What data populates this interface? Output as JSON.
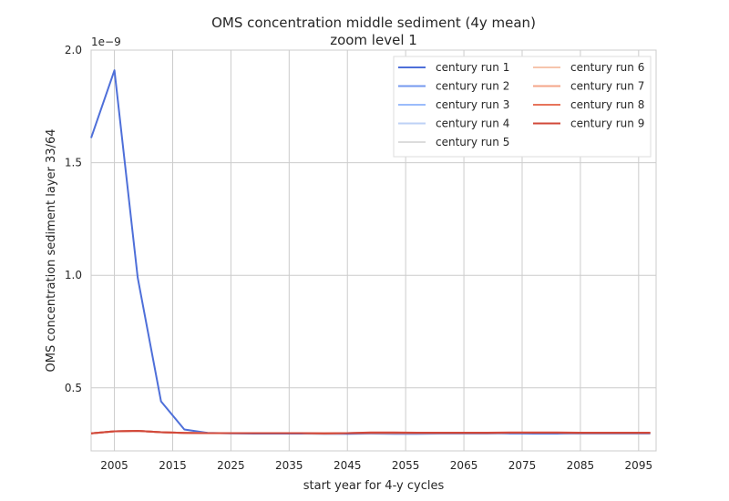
{
  "chart_data": {
    "type": "line",
    "title": "OMS concentration middle sediment (4y mean)",
    "subtitle": "zoom level 1",
    "xlabel": "start year for 4-y cycles",
    "ylabel": "OMS concentration sediment layer 33/64",
    "y_offset_label": "1e−9",
    "xlim": [
      2001,
      2098
    ],
    "ylim": [
      2.2e-10,
      2e-09
    ],
    "x_ticks": [
      2005,
      2015,
      2025,
      2035,
      2045,
      2055,
      2065,
      2075,
      2085,
      2095
    ],
    "x_tick_labels": [
      "2005",
      "2015",
      "2025",
      "2035",
      "2045",
      "2055",
      "2065",
      "2075",
      "2085",
      "2095"
    ],
    "y_ticks": [
      5e-10,
      1e-09,
      1.5e-09,
      2e-09
    ],
    "y_tick_labels": [
      "0.5",
      "1.0",
      "1.5",
      "2.0"
    ],
    "grid": true,
    "legend_position": "top-right",
    "x": [
      2001,
      2005,
      2009,
      2013,
      2017,
      2021,
      2025,
      2029,
      2033,
      2037,
      2041,
      2045,
      2049,
      2053,
      2057,
      2061,
      2065,
      2069,
      2073,
      2077,
      2081,
      2085,
      2089,
      2093,
      2097
    ],
    "series": [
      {
        "name": "century run 1",
        "color": "#4e6fd9",
        "values": [
          1.61e-09,
          1.91e-09,
          9.9e-10,
          4.4e-10,
          3.15e-10,
          3e-10,
          2.98e-10,
          2.97e-10,
          2.97e-10,
          2.97e-10,
          2.96e-10,
          2.96e-10,
          2.97e-10,
          2.96e-10,
          2.96e-10,
          2.97e-10,
          2.97e-10,
          2.97e-10,
          2.98e-10,
          2.97e-10,
          2.97e-10,
          2.97e-10,
          2.97e-10,
          2.97e-10,
          2.97e-10
        ]
      },
      {
        "name": "century run 2",
        "color": "#7598ef",
        "values": [
          2.98e-10,
          3.07e-10,
          3.09e-10,
          3.03e-10,
          3e-10,
          2.99e-10,
          2.99e-10,
          2.99e-10,
          2.99e-10,
          2.99e-10,
          2.98e-10,
          2.99e-10,
          3e-10,
          3e-10,
          3e-10,
          3e-10,
          3e-10,
          3e-10,
          3.01e-10,
          3.01e-10,
          3.01e-10,
          3e-10,
          3e-10,
          3e-10,
          3e-10
        ]
      },
      {
        "name": "century run 3",
        "color": "#9bbcfb",
        "values": [
          2.98e-10,
          3.07e-10,
          3.09e-10,
          3.03e-10,
          3e-10,
          2.99e-10,
          2.99e-10,
          2.99e-10,
          2.99e-10,
          2.99e-10,
          2.98e-10,
          2.99e-10,
          3e-10,
          3e-10,
          3e-10,
          3e-10,
          3e-10,
          3e-10,
          3.01e-10,
          3.01e-10,
          3.01e-10,
          3e-10,
          3e-10,
          3e-10,
          3e-10
        ]
      },
      {
        "name": "century run 4",
        "color": "#bed2f6",
        "values": [
          2.98e-10,
          3.07e-10,
          3.09e-10,
          3.03e-10,
          3e-10,
          2.99e-10,
          2.99e-10,
          2.99e-10,
          2.99e-10,
          2.99e-10,
          2.98e-10,
          2.99e-10,
          3e-10,
          3e-10,
          3e-10,
          3e-10,
          3e-10,
          3e-10,
          3.01e-10,
          3.01e-10,
          3.01e-10,
          3e-10,
          3e-10,
          3e-10,
          3e-10
        ]
      },
      {
        "name": "century run 5",
        "color": "#dcdcdc",
        "values": [
          2.98e-10,
          3.07e-10,
          3.09e-10,
          3.03e-10,
          3e-10,
          2.99e-10,
          2.99e-10,
          2.99e-10,
          2.99e-10,
          2.99e-10,
          2.98e-10,
          2.99e-10,
          3e-10,
          3e-10,
          3e-10,
          3e-10,
          3e-10,
          3e-10,
          3.01e-10,
          3.01e-10,
          3.01e-10,
          3e-10,
          3e-10,
          3e-10,
          3e-10
        ]
      },
      {
        "name": "century run 6",
        "color": "#f6c5ad",
        "values": [
          2.98e-10,
          3.07e-10,
          3.09e-10,
          3.03e-10,
          3e-10,
          2.99e-10,
          2.99e-10,
          2.99e-10,
          2.99e-10,
          2.99e-10,
          2.98e-10,
          2.99e-10,
          3e-10,
          3e-10,
          3e-10,
          3e-10,
          3e-10,
          3e-10,
          3.01e-10,
          3.01e-10,
          3.01e-10,
          3e-10,
          3e-10,
          3e-10,
          3e-10
        ]
      },
      {
        "name": "century run 7",
        "color": "#f4a688",
        "values": [
          2.98e-10,
          3.07e-10,
          3.09e-10,
          3.03e-10,
          3e-10,
          2.99e-10,
          2.99e-10,
          2.99e-10,
          2.99e-10,
          2.99e-10,
          2.98e-10,
          2.99e-10,
          3e-10,
          3e-10,
          3e-10,
          3e-10,
          3e-10,
          3e-10,
          3.01e-10,
          3.01e-10,
          3.01e-10,
          3e-10,
          3e-10,
          3e-10,
          3e-10
        ]
      },
      {
        "name": "century run 8",
        "color": "#e7745b",
        "values": [
          2.98e-10,
          3.07e-10,
          3.09e-10,
          3.03e-10,
          3e-10,
          2.99e-10,
          2.99e-10,
          2.99e-10,
          2.99e-10,
          2.99e-10,
          2.98e-10,
          2.99e-10,
          3e-10,
          3e-10,
          3e-10,
          3e-10,
          3e-10,
          3e-10,
          3.01e-10,
          3.01e-10,
          3.01e-10,
          3e-10,
          3e-10,
          3e-10,
          3e-10
        ]
      },
      {
        "name": "century run 9",
        "color": "#d2493a",
        "values": [
          2.98e-10,
          3.07e-10,
          3.09e-10,
          3.03e-10,
          3e-10,
          2.99e-10,
          2.99e-10,
          2.99e-10,
          2.99e-10,
          2.99e-10,
          2.98e-10,
          2.99e-10,
          3.02e-10,
          3.02e-10,
          3.01e-10,
          3.01e-10,
          3.01e-10,
          3.01e-10,
          3.02e-10,
          3.02e-10,
          3.02e-10,
          3.01e-10,
          3.01e-10,
          3.01e-10,
          3.01e-10
        ]
      }
    ]
  }
}
